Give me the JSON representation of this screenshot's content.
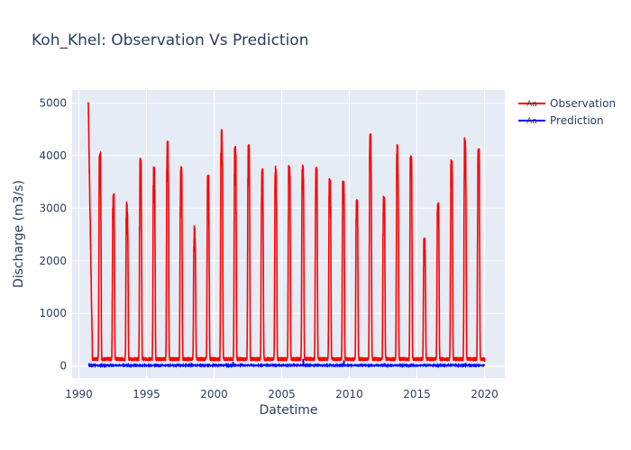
{
  "chart_data": {
    "type": "line",
    "title": "Koh_Khel: Observation Vs Prediction",
    "xlabel": "Datetime",
    "ylabel": "Discharge (m3/s)",
    "xlim": [
      1989.5,
      2021.5
    ],
    "ylim": [
      -230,
      5250
    ],
    "xticks": [
      1990,
      1995,
      2000,
      2005,
      2010,
      2015,
      2020
    ],
    "xtick_labels": [
      "1990",
      "1995",
      "2000",
      "2005",
      "2010",
      "2015",
      "2020"
    ],
    "yticks": [
      0,
      1000,
      2000,
      3000,
      4000,
      5000
    ],
    "ytick_labels": [
      "0",
      "1000",
      "2000",
      "3000",
      "4000",
      "5000"
    ],
    "grid": true,
    "legend_position": "top-right",
    "x_start": 1990.7,
    "x_end": 2020.0,
    "observation_annual_peaks": [
      {
        "year": 1990,
        "peak": 5000
      },
      {
        "year": 1991,
        "peak": 4080
      },
      {
        "year": 1992,
        "peak": 3280
      },
      {
        "year": 1993,
        "peak": 3120
      },
      {
        "year": 1994,
        "peak": 3950
      },
      {
        "year": 1995,
        "peak": 3790
      },
      {
        "year": 1996,
        "peak": 4290
      },
      {
        "year": 1997,
        "peak": 3790
      },
      {
        "year": 1998,
        "peak": 2680
      },
      {
        "year": 1999,
        "peak": 3640
      },
      {
        "year": 2000,
        "peak": 4510
      },
      {
        "year": 2001,
        "peak": 4200
      },
      {
        "year": 2002,
        "peak": 4210
      },
      {
        "year": 2003,
        "peak": 3750
      },
      {
        "year": 2004,
        "peak": 3800
      },
      {
        "year": 2005,
        "peak": 3810
      },
      {
        "year": 2006,
        "peak": 3830
      },
      {
        "year": 2007,
        "peak": 3780
      },
      {
        "year": 2008,
        "peak": 3570
      },
      {
        "year": 2009,
        "peak": 3540
      },
      {
        "year": 2010,
        "peak": 3170
      },
      {
        "year": 2011,
        "peak": 4430
      },
      {
        "year": 2012,
        "peak": 3240
      },
      {
        "year": 2013,
        "peak": 4210
      },
      {
        "year": 2014,
        "peak": 4000
      },
      {
        "year": 2015,
        "peak": 2450
      },
      {
        "year": 2016,
        "peak": 3120
      },
      {
        "year": 2017,
        "peak": 3920
      },
      {
        "year": 2018,
        "peak": 4340
      },
      {
        "year": 2019,
        "peak": 4150
      }
    ],
    "observation_baseflow": 130,
    "prediction_level": 5,
    "prediction_spikes": [
      {
        "x": 2001.4,
        "y": 60
      },
      {
        "x": 2006.6,
        "y": 120
      },
      {
        "x": 2009.6,
        "y": 90
      },
      {
        "x": 2012.6,
        "y": 40
      },
      {
        "x": 2018.6,
        "y": 45
      }
    ],
    "series": [
      {
        "name": "Observation",
        "color": "#ff0000"
      },
      {
        "name": "Prediction",
        "color": "#0000ff"
      }
    ],
    "plot_bg": "#e5ecf6",
    "grid_color": "#ffffff"
  }
}
